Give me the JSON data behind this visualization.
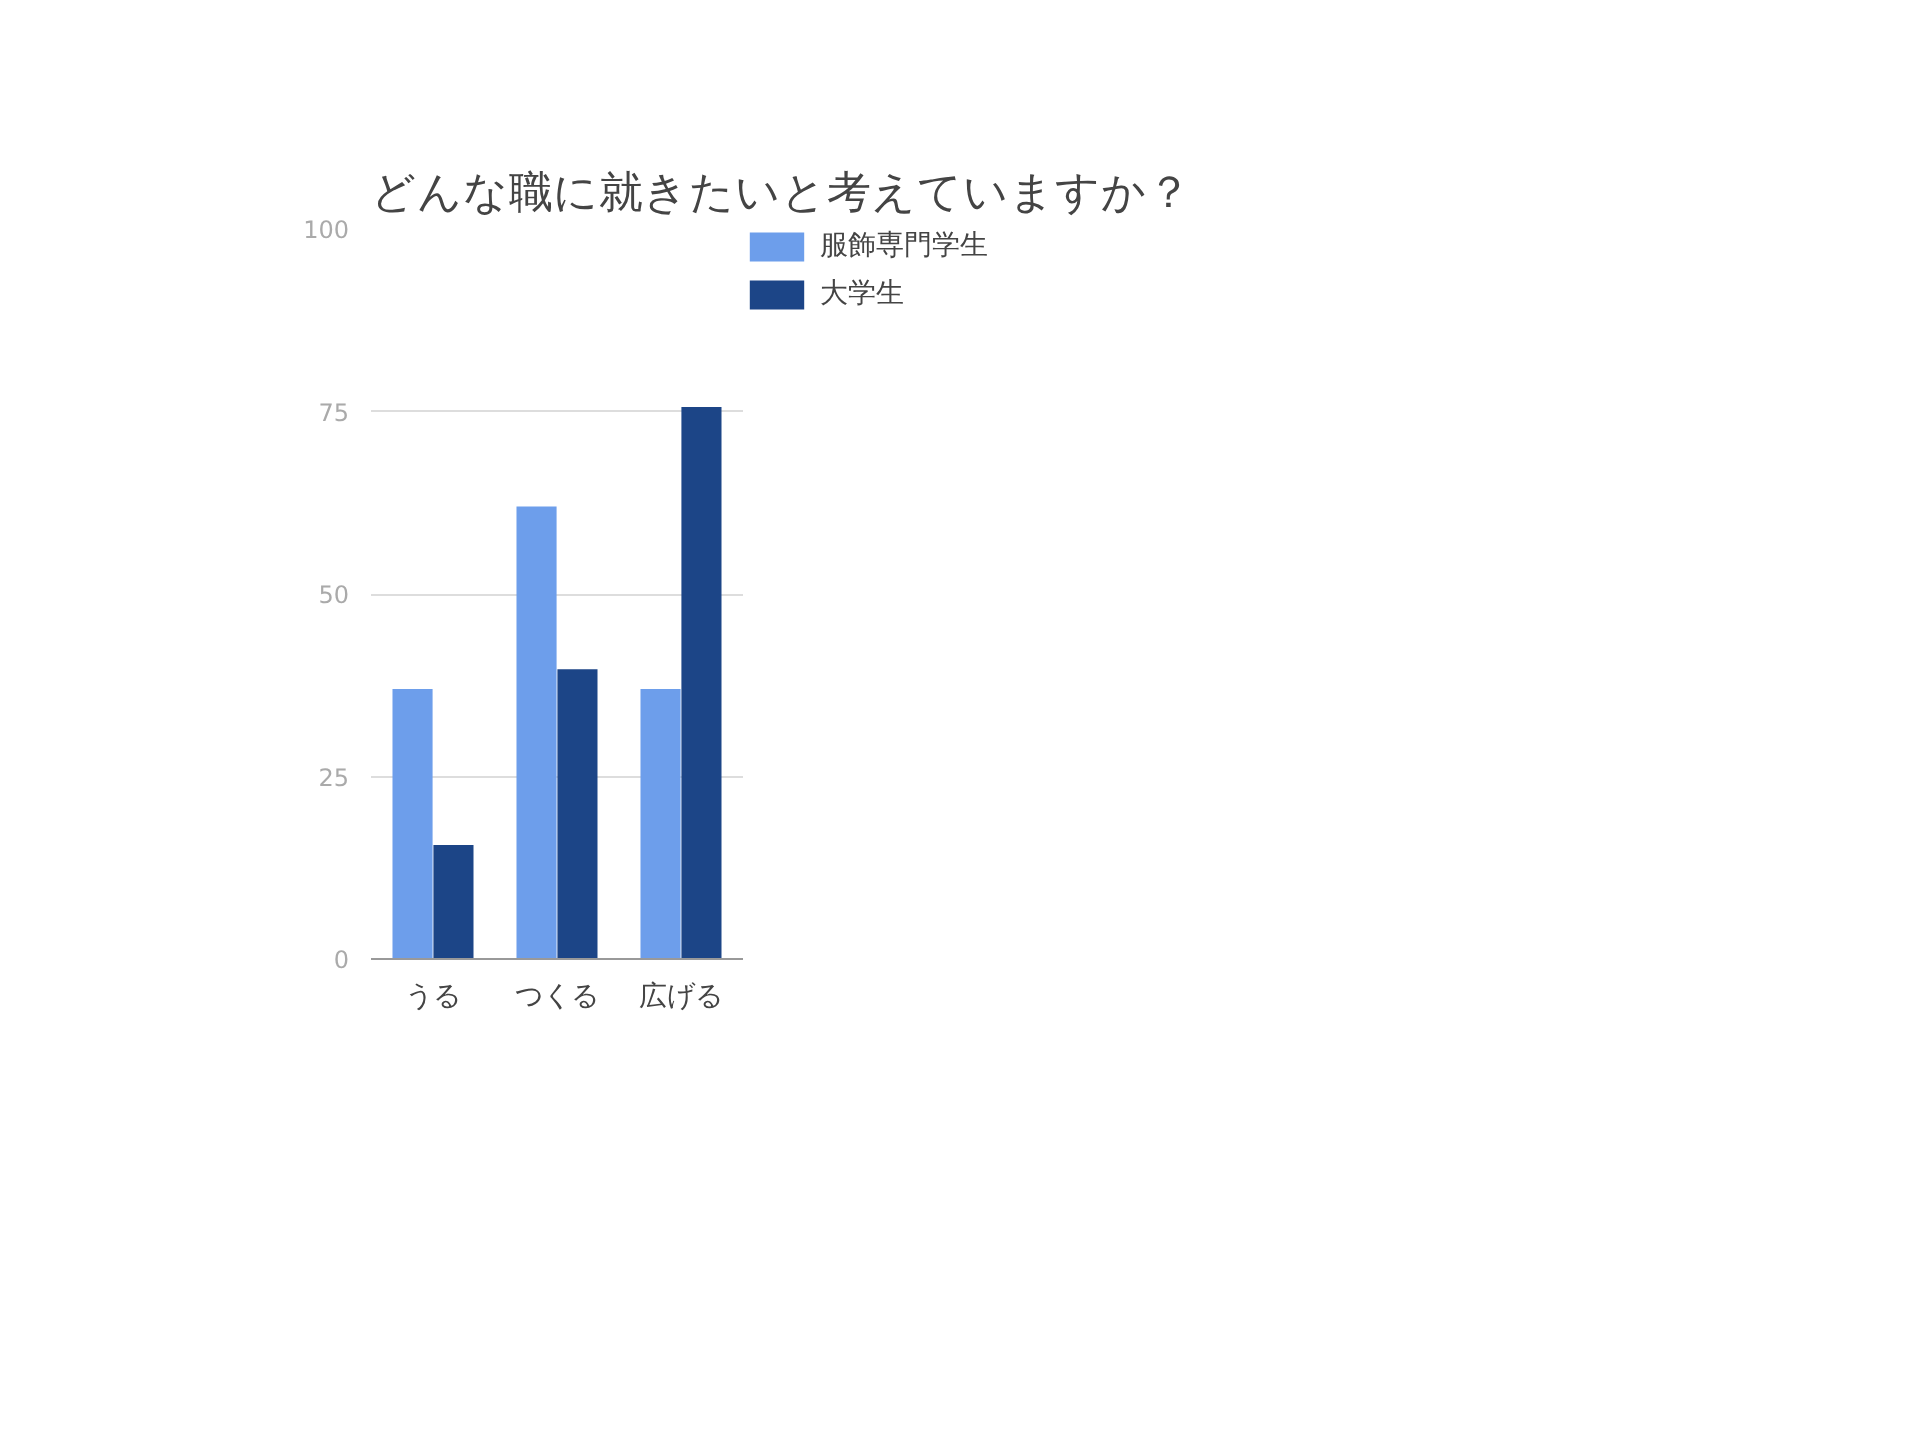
{
  "chart_data": {
    "type": "bar",
    "title": "どんな職に就きたいと考えていますか？",
    "categories": [
      "うる",
      "つくる",
      "広げる"
    ],
    "series": [
      {
        "name": "服飾専門学生",
        "color": "#6d9eeb",
        "values": [
          37,
          62,
          37
        ]
      },
      {
        "name": "大学生",
        "color": "#1c4587",
        "values": [
          15.6,
          39.7,
          75.6
        ]
      }
    ],
    "ylim": [
      0,
      100
    ],
    "yticks": [
      0,
      25,
      50,
      75,
      100
    ],
    "grid": "y",
    "legend": "top right"
  }
}
